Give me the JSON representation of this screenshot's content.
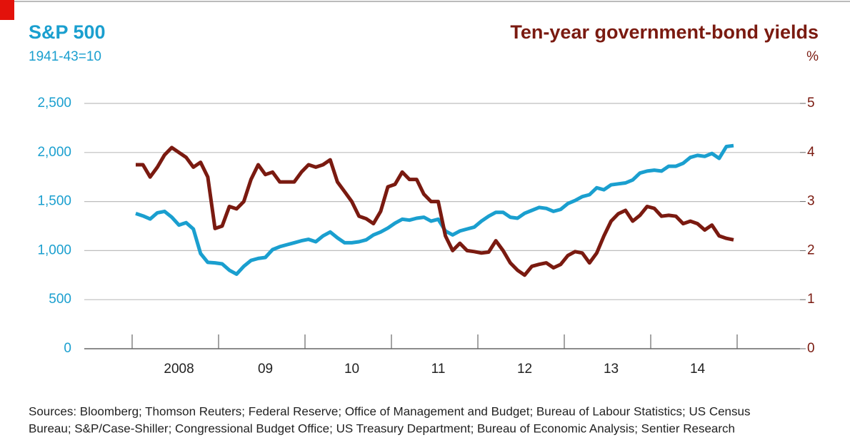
{
  "chart_data": {
    "type": "line",
    "title": "S&P 500",
    "subtitle": "1941-43=10",
    "y2_title": "Ten-year government-bond yields",
    "y2_unit": "%",
    "categories": [
      null,
      null,
      null,
      null,
      null,
      null,
      "2008",
      null,
      null,
      null,
      null,
      null,
      null,
      null,
      null,
      null,
      null,
      null,
      "09",
      null,
      null,
      null,
      null,
      null,
      null,
      null,
      null,
      null,
      null,
      null,
      "10",
      null,
      null,
      null,
      null,
      null,
      null,
      null,
      null,
      null,
      null,
      null,
      "11",
      null,
      null,
      null,
      null,
      null,
      null,
      null,
      null,
      null,
      null,
      null,
      "12",
      null,
      null,
      null,
      null,
      null,
      null,
      null,
      null,
      null,
      null,
      null,
      "13",
      null,
      null,
      null,
      null,
      null,
      null,
      null,
      null,
      null,
      null,
      null,
      "14",
      null,
      null,
      null,
      null,
      null
    ],
    "ylim": [
      0,
      2500
    ],
    "yticks": [
      0,
      500,
      {
        "value": 1000,
        "label": "1,000"
      },
      {
        "value": 1500,
        "label": "1,500"
      },
      {
        "value": 2000,
        "label": "2,000"
      },
      {
        "value": 2500,
        "label": "2,500"
      }
    ],
    "y2lim": [
      0,
      5
    ],
    "y2ticks": [
      0,
      1,
      2,
      3,
      4,
      5
    ],
    "grid": true,
    "series": [
      {
        "name": "S&P 500",
        "color": "#1a9fcf",
        "axis": "y",
        "values": [
          1378,
          1354,
          1322,
          1385,
          1400,
          1340,
          1260,
          1285,
          1220,
          970,
          880,
          875,
          865,
          800,
          760,
          840,
          900,
          920,
          930,
          1010,
          1040,
          1060,
          1080,
          1100,
          1115,
          1090,
          1150,
          1190,
          1130,
          1080,
          1080,
          1090,
          1110,
          1160,
          1190,
          1230,
          1280,
          1320,
          1310,
          1330,
          1340,
          1300,
          1320,
          1200,
          1160,
          1200,
          1220,
          1240,
          1300,
          1350,
          1390,
          1390,
          1340,
          1330,
          1380,
          1410,
          1440,
          1430,
          1400,
          1420,
          1480,
          1510,
          1550,
          1570,
          1640,
          1620,
          1670,
          1680,
          1690,
          1720,
          1790,
          1810,
          1820,
          1810,
          1860,
          1860,
          1890,
          1950,
          1970,
          1960,
          1990,
          1940,
          2060,
          2070
        ]
      },
      {
        "name": "Ten-year government-bond yields",
        "color": "#7a1a10",
        "axis": "y2",
        "values": [
          3.75,
          3.75,
          3.5,
          3.7,
          3.95,
          4.1,
          4.0,
          3.9,
          3.7,
          3.8,
          3.5,
          2.45,
          2.5,
          2.9,
          2.85,
          3.0,
          3.45,
          3.75,
          3.55,
          3.6,
          3.4,
          3.4,
          3.4,
          3.6,
          3.75,
          3.7,
          3.75,
          3.85,
          3.4,
          3.2,
          3.0,
          2.7,
          2.65,
          2.55,
          2.8,
          3.3,
          3.35,
          3.6,
          3.45,
          3.45,
          3.15,
          3.0,
          3.0,
          2.3,
          2.0,
          2.15,
          2.0,
          1.98,
          1.95,
          1.97,
          2.2,
          2.0,
          1.75,
          1.6,
          1.5,
          1.68,
          1.72,
          1.75,
          1.65,
          1.72,
          1.9,
          1.98,
          1.95,
          1.75,
          1.95,
          2.3,
          2.6,
          2.75,
          2.82,
          2.6,
          2.72,
          2.9,
          2.86,
          2.7,
          2.72,
          2.7,
          2.55,
          2.6,
          2.55,
          2.42,
          2.52,
          2.3,
          2.25,
          2.22
        ]
      }
    ],
    "source_lines": [
      "Sources: Bloomberg; Thomson Reuters; Federal Reserve; Office of Management and Budget; Bureau of Labour Statistics; US Census",
      "Bureau; S&P/Case-Shiller; Congressional Budget Office; US Treasury Department; Bureau of Economic Analysis; Sentier Research"
    ]
  }
}
